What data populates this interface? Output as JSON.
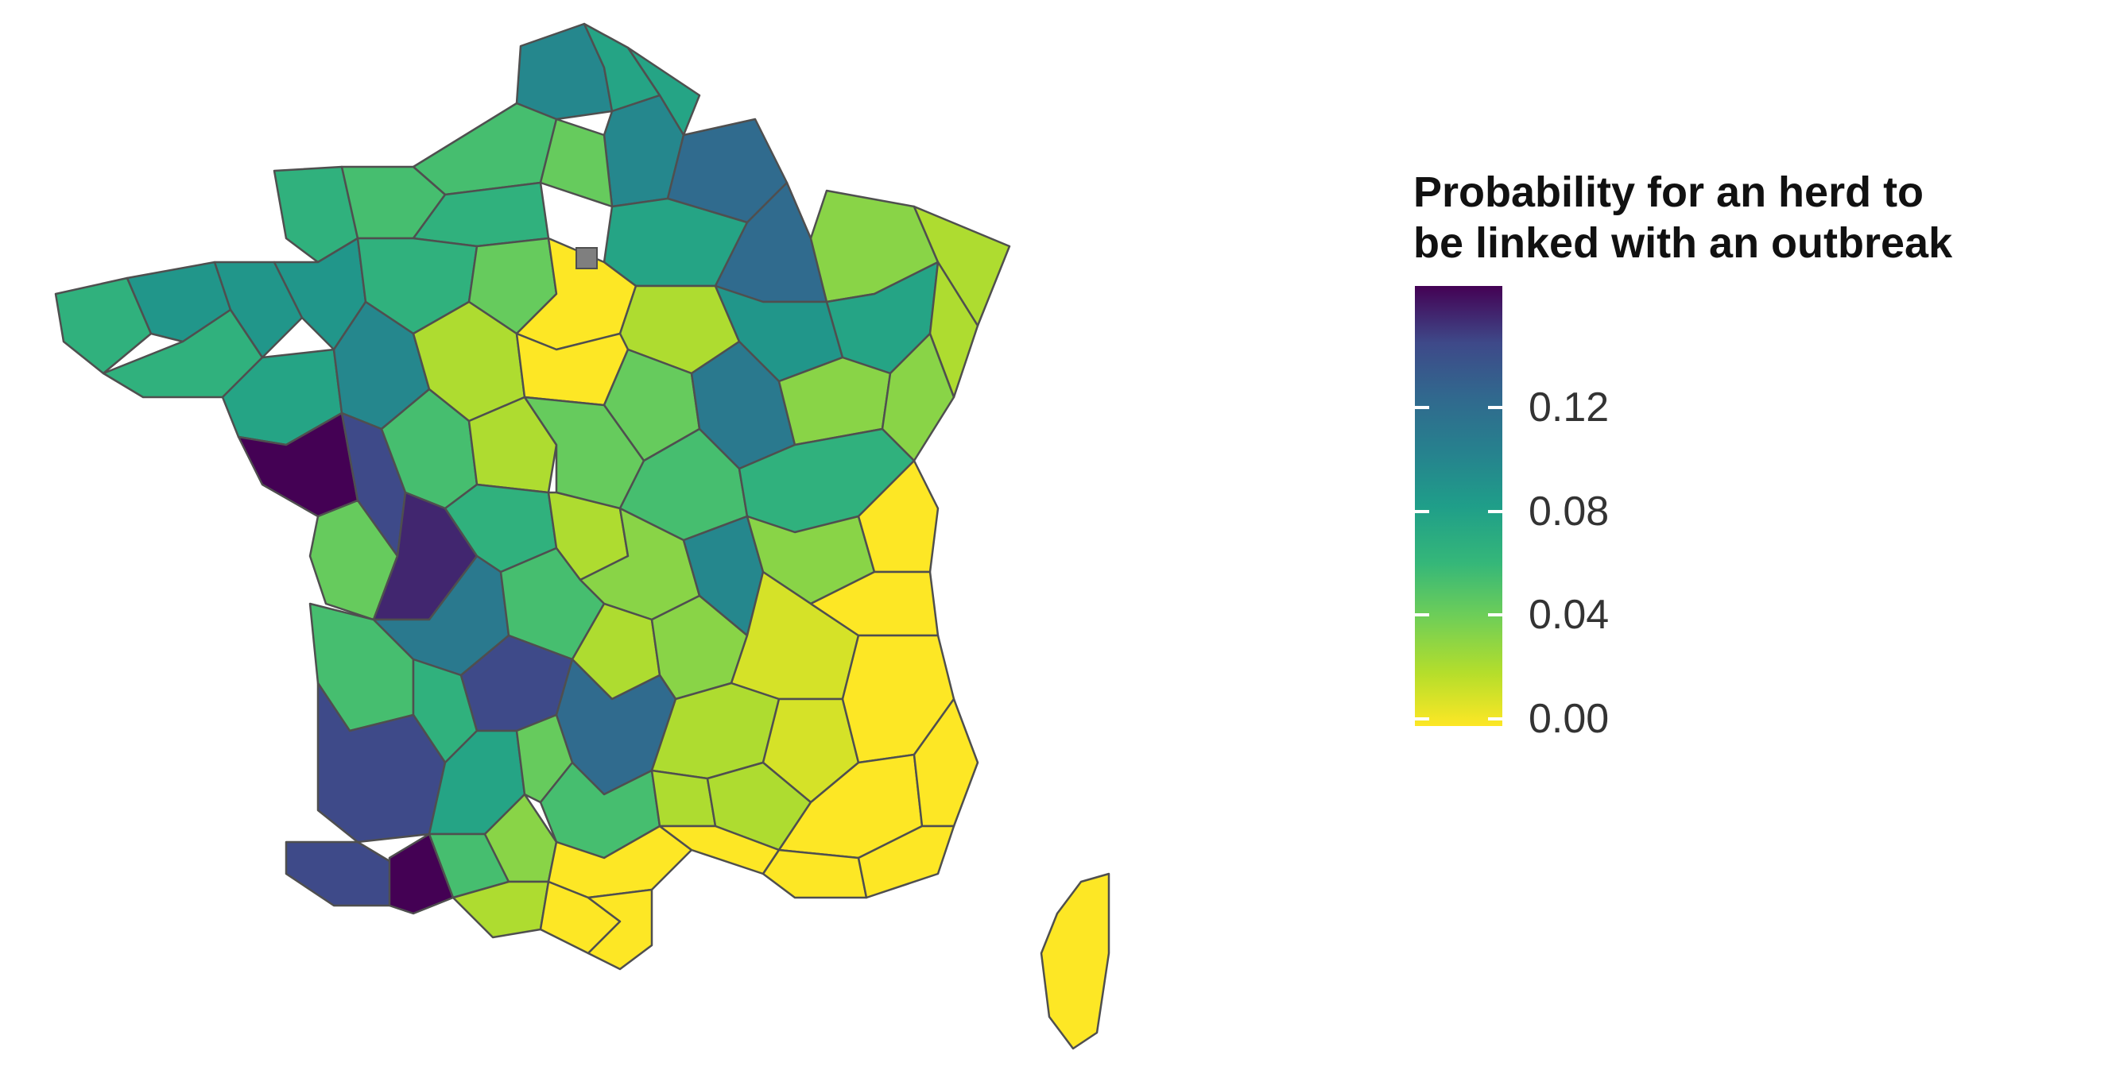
{
  "legend": {
    "title_line1": "Probability for an herd to",
    "title_line2": "be linked with an outbreak",
    "scale_min": 0.0,
    "scale_max": 0.15,
    "ticks": [
      {
        "value": 0.12,
        "label": "0.12"
      },
      {
        "value": 0.08,
        "label": "0.08"
      },
      {
        "value": 0.04,
        "label": "0.04"
      },
      {
        "value": 0.0,
        "label": "0.00"
      }
    ],
    "palette": "viridis (reversed: yellow = low, purple = high)",
    "colors": {
      "low": "#fde725",
      "high": "#440154",
      "border": "#4f4f4f",
      "missing": "#7f7f7f"
    }
  },
  "map": {
    "region": "France (departments)",
    "departments_probability": [
      {
        "area": "north-coast",
        "value": 0.09
      },
      {
        "area": "nord-east-1",
        "value": 0.07
      },
      {
        "area": "nord-east-2",
        "value": 0.07
      },
      {
        "area": "somme",
        "value": 0.05
      },
      {
        "area": "aisne",
        "value": 0.09
      },
      {
        "area": "ardennes",
        "value": 0.11
      },
      {
        "area": "manche",
        "value": 0.06
      },
      {
        "area": "calvados",
        "value": 0.05
      },
      {
        "area": "eure",
        "value": 0.06
      },
      {
        "area": "oise",
        "value": 0.04
      },
      {
        "area": "marne",
        "value": 0.07
      },
      {
        "area": "meuse",
        "value": 0.11
      },
      {
        "area": "moselle",
        "value": 0.03
      },
      {
        "area": "alsace-north",
        "value": 0.02
      },
      {
        "area": "finistere",
        "value": 0.06
      },
      {
        "area": "cotes-armor",
        "value": 0.08
      },
      {
        "area": "ille-vilaine",
        "value": 0.08
      },
      {
        "area": "mayenne",
        "value": 0.08
      },
      {
        "area": "orne",
        "value": 0.06
      },
      {
        "area": "eure-loir",
        "value": 0.04
      },
      {
        "area": "paris-region",
        "value": 0.0
      },
      {
        "area": "aube",
        "value": 0.02
      },
      {
        "area": "haute-marne",
        "value": 0.08
      },
      {
        "area": "vosges",
        "value": 0.07
      },
      {
        "area": "alsace-south",
        "value": 0.02
      },
      {
        "area": "morbihan",
        "value": 0.06
      },
      {
        "area": "loire-atlantique",
        "value": 0.07
      },
      {
        "area": "sarthe",
        "value": 0.09
      },
      {
        "area": "loir-cher",
        "value": 0.02
      },
      {
        "area": "loiret",
        "value": 0.0
      },
      {
        "area": "yonne",
        "value": 0.04
      },
      {
        "area": "cote-or",
        "value": 0.1
      },
      {
        "area": "haute-saone",
        "value": 0.03
      },
      {
        "area": "doubs",
        "value": 0.03
      },
      {
        "area": "vendee",
        "value": 0.15
      },
      {
        "area": "maine-loire",
        "value": 0.13
      },
      {
        "area": "indre-loire",
        "value": 0.05
      },
      {
        "area": "cher",
        "value": 0.02
      },
      {
        "area": "nievre",
        "value": 0.04
      },
      {
        "area": "saone-loire",
        "value": 0.05
      },
      {
        "area": "jura",
        "value": 0.06
      },
      {
        "area": "charente-maritime",
        "value": 0.04
      },
      {
        "area": "deux-sevres",
        "value": 0.14
      },
      {
        "area": "vienne",
        "value": 0.06
      },
      {
        "area": "indre",
        "value": 0.02
      },
      {
        "area": "allier",
        "value": 0.03
      },
      {
        "area": "rhone",
        "value": 0.09
      },
      {
        "area": "ain",
        "value": 0.03
      },
      {
        "area": "haute-savoie",
        "value": 0.0
      },
      {
        "area": "gironde",
        "value": 0.05
      },
      {
        "area": "haute-vienne",
        "value": 0.1
      },
      {
        "area": "creuse",
        "value": 0.05
      },
      {
        "area": "puy-dome",
        "value": 0.02
      },
      {
        "area": "loire",
        "value": 0.03
      },
      {
        "area": "isere",
        "value": 0.01
      },
      {
        "area": "savoie",
        "value": 0.0
      },
      {
        "area": "dordogne",
        "value": 0.06
      },
      {
        "area": "correze",
        "value": 0.13
      },
      {
        "area": "cantal",
        "value": 0.11
      },
      {
        "area": "haute-loire",
        "value": 0.02
      },
      {
        "area": "drome",
        "value": 0.01
      },
      {
        "area": "hautes-alpes",
        "value": 0.0
      },
      {
        "area": "landes",
        "value": 0.13
      },
      {
        "area": "lot-garonne",
        "value": 0.07
      },
      {
        "area": "lot",
        "value": 0.04
      },
      {
        "area": "aveyron",
        "value": 0.05
      },
      {
        "area": "lozere",
        "value": 0.02
      },
      {
        "area": "ardeche",
        "value": 0.02
      },
      {
        "area": "vaucluse",
        "value": 0.0
      },
      {
        "area": "alpes-maritimes",
        "value": 0.0
      },
      {
        "area": "pyrenees-atlantiques",
        "value": 0.13
      },
      {
        "area": "hautes-pyrenees",
        "value": 0.15
      },
      {
        "area": "gers",
        "value": 0.05
      },
      {
        "area": "tarn",
        "value": 0.03
      },
      {
        "area": "herault",
        "value": 0.0
      },
      {
        "area": "gard",
        "value": 0.0
      },
      {
        "area": "bouches-rhone",
        "value": 0.0
      },
      {
        "area": "var",
        "value": 0.0
      },
      {
        "area": "ariege",
        "value": 0.02
      },
      {
        "area": "aude",
        "value": 0.0
      },
      {
        "area": "pyrenees-orientales",
        "value": 0.0
      },
      {
        "area": "corse",
        "value": 0.0
      }
    ]
  }
}
